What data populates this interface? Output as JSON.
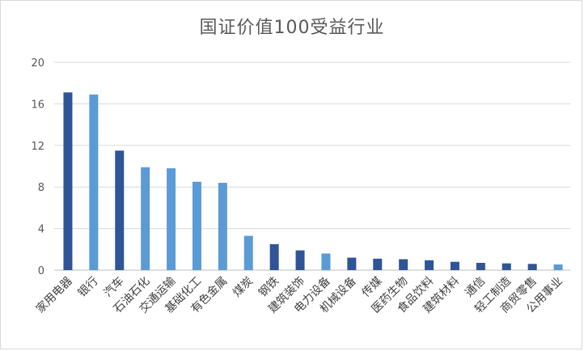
{
  "chart_data": {
    "type": "bar",
    "title": "国证价值100受益行业",
    "xlabel": "",
    "ylabel": "",
    "ylim": [
      0,
      20
    ],
    "yticks": [
      0,
      4,
      8,
      12,
      16,
      20
    ],
    "grid": true,
    "legend": "none",
    "categories": [
      "家用电器",
      "银行",
      "汽车",
      "石油石化",
      "交通运输",
      "基础化工",
      "有色金属",
      "煤炭",
      "钢铁",
      "建筑装饰",
      "电力设备",
      "机械设备",
      "传媒",
      "医药生物",
      "食品饮料",
      "建筑材料",
      "通信",
      "轻工制造",
      "商贸零售",
      "公用事业"
    ],
    "values": [
      17.1,
      16.9,
      11.5,
      9.9,
      9.8,
      8.5,
      8.4,
      3.3,
      2.5,
      1.9,
      1.6,
      1.2,
      1.1,
      1.05,
      0.95,
      0.8,
      0.7,
      0.65,
      0.6,
      0.55
    ],
    "bar_colors": [
      "#2f5597",
      "#5b9bd5",
      "#2f5597",
      "#5b9bd5",
      "#5b9bd5",
      "#5b9bd5",
      "#5b9bd5",
      "#5b9bd5",
      "#2f5597",
      "#2f5597",
      "#5b9bd5",
      "#2f5597",
      "#2f5597",
      "#2f5597",
      "#2f5597",
      "#2f5597",
      "#2f5597",
      "#2f5597",
      "#2f5597",
      "#5b9bd5"
    ],
    "colors": {
      "dark": "#2f5597",
      "light": "#5b9bd5",
      "grid": "#d9d9d9",
      "axis": "#bfbfbf"
    }
  }
}
